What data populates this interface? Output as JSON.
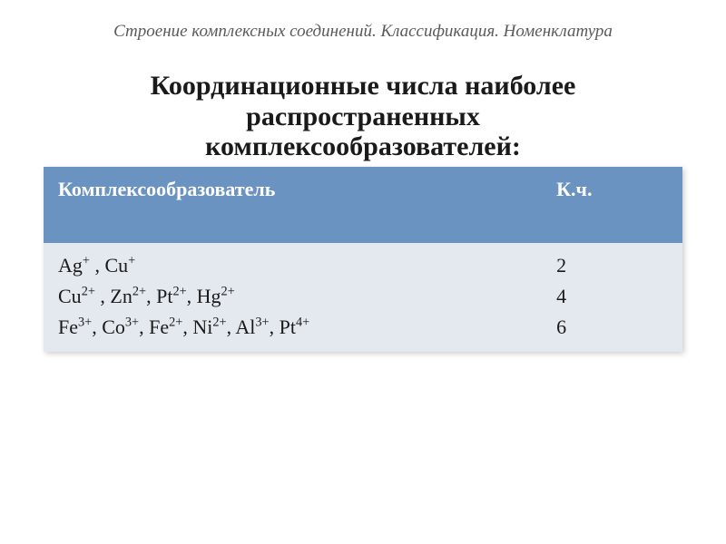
{
  "subtitle": "Строение комплексных соединений. Классификация. Номенклатура",
  "title_line1": "Координационные числа наиболее",
  "title_line2": "распространенных",
  "title_line3": "комплексообразователей:",
  "table": {
    "header_bg": "#6a93c1",
    "header_fg": "#ffffff",
    "body_bg": "#e4e9ef",
    "body_fg": "#1a1a1a",
    "header_fontsize": 22,
    "body_fontsize": 22,
    "columns": {
      "former": "Комплексообразователь",
      "cn": "К.ч."
    },
    "rows": [
      {
        "former_html": "Ag<sup>+</sup> , Cu<sup>+</sup>",
        "cn": "2"
      },
      {
        "former_html": "Cu<sup>2+</sup> , Zn<sup>2+</sup>, Pt<sup>2+</sup>, Hg<sup>2+</sup>",
        "cn": "4"
      },
      {
        "former_html": "Fe<sup>3+</sup>, Co<sup>3+</sup>, Fe<sup>2+</sup>, Ni<sup>2+</sup>, Al<sup>3+</sup>, Pt<sup>4+</sup>",
        "cn": "6"
      }
    ]
  }
}
